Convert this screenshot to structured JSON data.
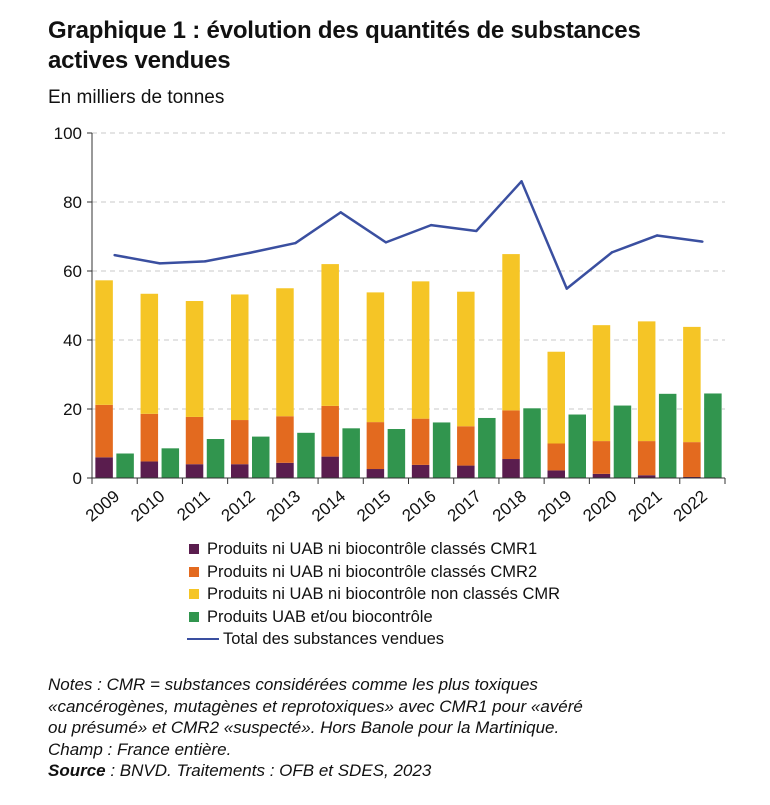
{
  "title_line1": "Graphique 1 : évolution des quantités de substances",
  "title_line2": "actives vendues",
  "subtitle": "En milliers de tonnes",
  "colors": {
    "cmr1": "#5a1d4e",
    "cmr2": "#e36a1f",
    "non_cmr": "#f5c526",
    "uab": "#31954e",
    "total": "#3a4fa0",
    "grid": "#c8c8c8",
    "axis": "#333333"
  },
  "legend": [
    {
      "key": "cmr1",
      "label": "Produits ni UAB ni biocontrôle classés CMR1"
    },
    {
      "key": "cmr2",
      "label": "Produits ni UAB ni biocontrôle classés CMR2"
    },
    {
      "key": "non_cmr",
      "label": "Produits ni UAB ni biocontrôle non classés CMR"
    },
    {
      "key": "uab",
      "label": "Produits UAB et/ou biocontrôle"
    },
    {
      "key": "total",
      "label": "Total des substances vendues"
    }
  ],
  "notes": {
    "line1": "Notes : CMR = substances considérées comme les plus toxiques",
    "line2": "«cancérogènes, mutagènes et reprotoxiques» avec CMR1 pour «avéré",
    "line3": "ou présumé» et CMR2 «suspecté». Hors Banole pour la Martinique.",
    "line4": "Champ : France entière.",
    "source_label": "Source",
    "source_text": " : BNVD. Traitements : OFB et SDES, 2023"
  },
  "chart_data": {
    "type": "bar",
    "title": "Graphique 1 : évolution des quantités de substances actives vendues",
    "ylabel": "En milliers de tonnes",
    "ylim": [
      0,
      100
    ],
    "yticks": [
      0,
      20,
      40,
      60,
      80,
      100
    ],
    "grid": true,
    "categories": [
      "2009",
      "2010",
      "2011",
      "2012",
      "2013",
      "2014",
      "2015",
      "2016",
      "2017",
      "2018",
      "2019",
      "2020",
      "2021",
      "2022"
    ],
    "stacked_series": [
      {
        "key": "cmr1",
        "name": "Produits ni UAB ni biocontrôle classés CMR1",
        "values": [
          6.0,
          4.8,
          4.0,
          4.0,
          4.4,
          6.2,
          2.6,
          3.8,
          3.6,
          5.5,
          2.2,
          1.2,
          0.8,
          0.3
        ]
      },
      {
        "key": "cmr2",
        "name": "Produits ni UAB ni biocontrôle classés CMR2",
        "values": [
          15.2,
          13.8,
          13.7,
          12.8,
          13.5,
          14.7,
          13.6,
          13.4,
          11.4,
          14.1,
          7.8,
          9.5,
          9.9,
          10.1
        ]
      },
      {
        "key": "non_cmr",
        "name": "Produits ni UAB ni biocontrôle non classés CMR",
        "values": [
          36.1,
          34.8,
          33.6,
          36.4,
          37.1,
          41.1,
          37.6,
          39.8,
          39.0,
          45.3,
          26.6,
          33.6,
          34.7,
          33.4
        ]
      }
    ],
    "side_series": {
      "key": "uab",
      "name": "Produits UAB et/ou biocontrôle",
      "values": [
        7.1,
        8.6,
        11.3,
        12.0,
        13.1,
        14.4,
        14.2,
        16.1,
        17.4,
        20.2,
        18.4,
        21.0,
        24.4,
        24.5
      ]
    },
    "line_series": {
      "key": "total",
      "name": "Total des substances vendues",
      "values": [
        64.6,
        62.2,
        62.8,
        65.3,
        68.1,
        77.0,
        68.3,
        73.3,
        71.6,
        86.0,
        54.9,
        65.4,
        70.3,
        68.5
      ]
    }
  }
}
